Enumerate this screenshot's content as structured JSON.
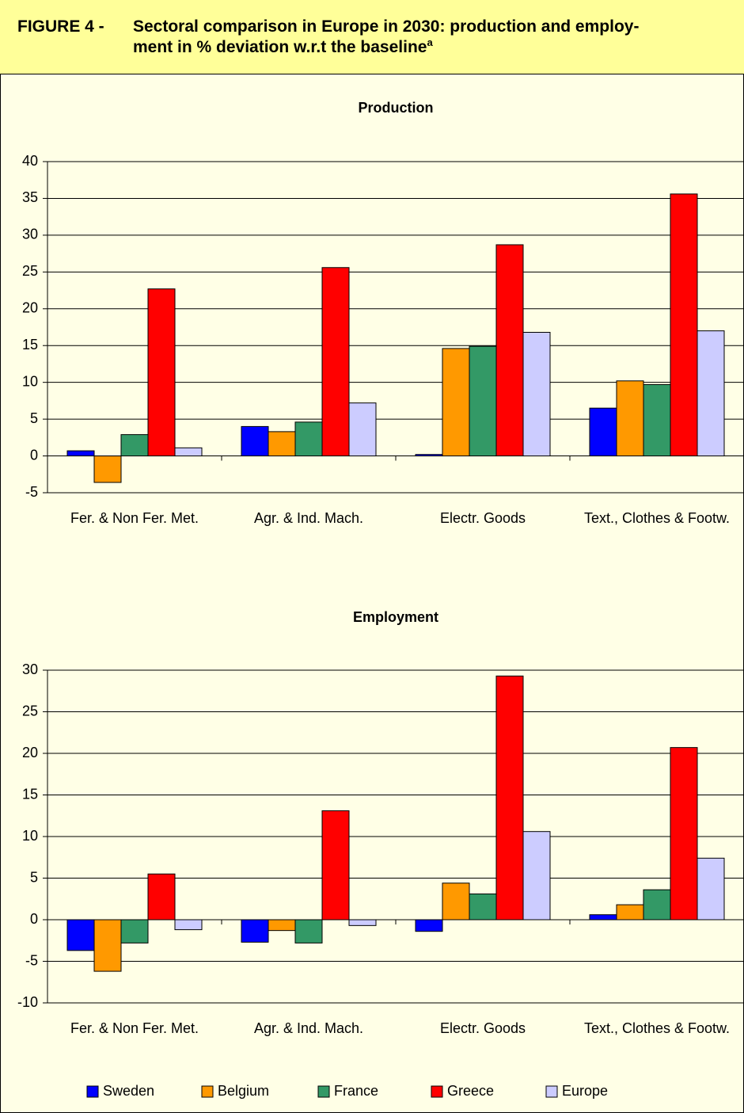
{
  "header": {
    "figure_label": "FIGURE 4 -",
    "title_lines": [
      "Sectoral comparison in Europe in 2030: production and employ-",
      "ment in % deviation w.r.t the baseline"
    ],
    "title_superscript": "a"
  },
  "chart_data": [
    {
      "type": "bar",
      "title": "Production",
      "categories": [
        "Fer. & Non Fer. Met.",
        "Agr. & Ind. Mach.",
        "Electr. Goods",
        "Text., Clothes & Footw."
      ],
      "series": [
        {
          "color": "#0000ff",
          "values": [
            0.7,
            4.0,
            0.2,
            6.5
          ]
        },
        {
          "color": "#ff9900",
          "values": [
            -3.6,
            3.3,
            14.6,
            10.2
          ]
        },
        {
          "color": "#339966",
          "values": [
            2.9,
            4.6,
            14.9,
            9.7
          ]
        },
        {
          "color": "#ff0000",
          "values": [
            22.7,
            25.6,
            28.7,
            35.6
          ]
        },
        {
          "color": "#ccccff",
          "values": [
            1.1,
            7.2,
            16.8,
            17.0
          ]
        }
      ],
      "ylim": [
        -5,
        40
      ],
      "yticks": [
        -5,
        0,
        5,
        10,
        15,
        20,
        25,
        30,
        35,
        40
      ],
      "grid": true
    },
    {
      "type": "bar",
      "title": "Employment",
      "categories": [
        "Fer. & Non Fer. Met.",
        "Agr. & Ind. Mach.",
        "Electr. Goods",
        "Text., Clothes & Footw."
      ],
      "series": [
        {
          "name": "Sweden",
          "color": "#0000ff",
          "values": [
            -3.7,
            -2.7,
            -1.4,
            0.6
          ]
        },
        {
          "name": "Belgium",
          "color": "#ff9900",
          "values": [
            -6.2,
            -1.3,
            4.4,
            1.8
          ]
        },
        {
          "name": "France",
          "color": "#339966",
          "values": [
            -2.8,
            -2.8,
            3.1,
            3.6
          ]
        },
        {
          "name": "Greece",
          "color": "#ff0000",
          "values": [
            5.5,
            13.1,
            29.3,
            20.7
          ]
        },
        {
          "name": "Europe",
          "color": "#ccccff",
          "values": [
            -1.2,
            -0.7,
            10.6,
            7.4
          ]
        }
      ],
      "ylim": [
        -10,
        30
      ],
      "yticks": [
        -10,
        -5,
        0,
        5,
        10,
        15,
        20,
        25,
        30
      ],
      "grid": true,
      "legend": "bottom"
    }
  ]
}
